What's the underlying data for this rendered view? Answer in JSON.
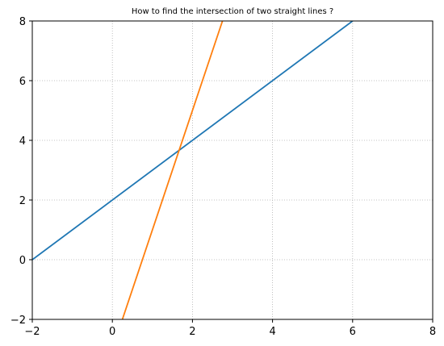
{
  "chart_data": {
    "type": "line",
    "title": "How to find the intersection of two straight lines ?",
    "xlabel": "",
    "ylabel": "",
    "xlim": [
      -2,
      8
    ],
    "ylim": [
      -2,
      8
    ],
    "xticks": [
      -2,
      0,
      2,
      4,
      6,
      8
    ],
    "yticks": [
      -2,
      0,
      2,
      4,
      6,
      8
    ],
    "grid": true,
    "grid_style": "dotted",
    "series": [
      {
        "color": "#1f77b4",
        "x": [
          -2,
          6
        ],
        "y": [
          0,
          8
        ]
      },
      {
        "color": "#ff7f0e",
        "x": [
          0.25,
          2.75
        ],
        "y": [
          -2,
          8
        ]
      }
    ]
  }
}
